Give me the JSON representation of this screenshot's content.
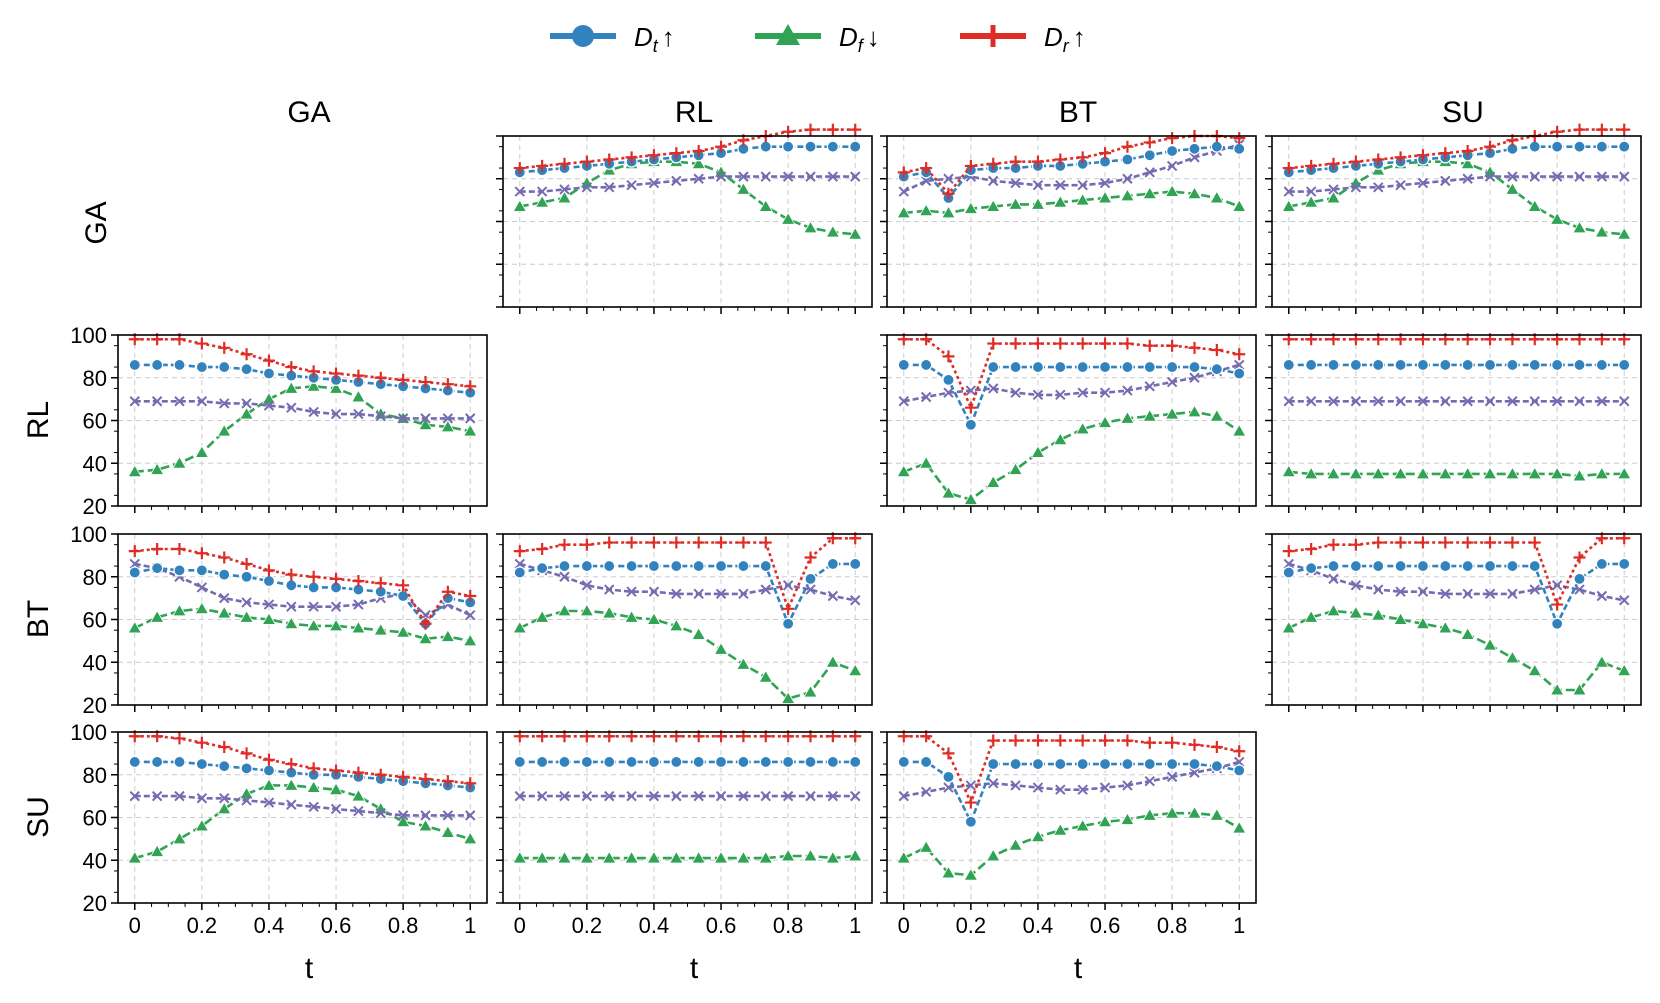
{
  "legend": {
    "items": [
      {
        "label": "D",
        "sub": "t",
        "arrow": "↑",
        "color": "#3182bd",
        "marker": "circle"
      },
      {
        "label": "D",
        "sub": "f",
        "arrow": "↓",
        "color": "#31a354",
        "marker": "triangle"
      },
      {
        "label": "D",
        "sub": "r",
        "arrow": "↑",
        "color": "#de2d26",
        "marker": "plus"
      }
    ]
  },
  "col_labels": [
    "GA",
    "RL",
    "BT",
    "SU"
  ],
  "row_labels": [
    "GA",
    "RL",
    "BT",
    "SU"
  ],
  "xlabel": "t",
  "chart_data": {
    "type": "line",
    "grid": true,
    "x": [
      0,
      0.0667,
      0.1333,
      0.2,
      0.2667,
      0.3333,
      0.4,
      0.4667,
      0.5333,
      0.6,
      0.6667,
      0.7333,
      0.8,
      0.8667,
      0.9333,
      1.0
    ],
    "xticks": [
      "0",
      "0.2",
      "0.4",
      "0.6",
      "0.8",
      "1"
    ],
    "yticks": [
      "20",
      "40",
      "60",
      "80",
      "100"
    ],
    "ylim": [
      20,
      100
    ],
    "xlim": [
      -0.05,
      1.05
    ],
    "series_styles": {
      "Dt": {
        "color": "#3182bd",
        "marker": "circle",
        "dash": "6,3"
      },
      "Df": {
        "color": "#31a354",
        "marker": "triangle",
        "dash": "9,4"
      },
      "Dr": {
        "color": "#de2d26",
        "marker": "plus",
        "dash": "3,3"
      },
      "X": {
        "color": "#756bb1",
        "marker": "x",
        "dash": "6,3"
      }
    },
    "panels": [
      {
        "row": 0,
        "col": 1,
        "series": {
          "Dt": [
            83,
            84,
            85,
            86,
            87,
            88,
            89,
            90,
            91,
            92,
            94,
            95,
            95,
            95,
            95,
            95
          ],
          "Df": [
            67,
            69,
            71,
            78,
            84,
            87,
            88,
            88,
            87,
            83,
            75,
            67,
            61,
            57,
            55,
            54
          ],
          "Dr": [
            85,
            86,
            87,
            88,
            89,
            90,
            91,
            92,
            93,
            95,
            98,
            100,
            102,
            103,
            103,
            103
          ],
          "X": [
            74,
            74,
            75,
            76,
            76,
            77,
            78,
            79,
            80,
            81,
            81,
            81,
            81,
            81,
            81,
            81
          ]
        }
      },
      {
        "row": 0,
        "col": 2,
        "series": {
          "Dt": [
            81,
            83,
            71,
            84,
            85,
            85,
            86,
            86,
            87,
            88,
            89,
            91,
            93,
            94,
            95,
            94
          ],
          "Df": [
            64,
            65,
            64,
            66,
            67,
            68,
            68,
            69,
            70,
            71,
            72,
            73,
            74,
            73,
            71,
            67
          ],
          "Dr": [
            83,
            85,
            73,
            86,
            87,
            88,
            88,
            89,
            90,
            92,
            95,
            97,
            99,
            100,
            100,
            99
          ],
          "X": [
            74,
            79,
            80,
            81,
            79,
            78,
            77,
            77,
            77,
            78,
            80,
            83,
            86,
            90,
            93,
            96
          ]
        }
      },
      {
        "row": 0,
        "col": 3,
        "series": {
          "Dt": [
            83,
            84,
            85,
            86,
            87,
            88,
            89,
            90,
            91,
            92,
            94,
            95,
            95,
            95,
            95,
            95
          ],
          "Df": [
            67,
            69,
            71,
            78,
            84,
            87,
            88,
            88,
            87,
            83,
            75,
            67,
            61,
            57,
            55,
            54
          ],
          "Dr": [
            85,
            86,
            87,
            88,
            89,
            90,
            91,
            92,
            93,
            95,
            98,
            100,
            102,
            103,
            103,
            103
          ],
          "X": [
            74,
            74,
            75,
            76,
            76,
            77,
            78,
            79,
            80,
            81,
            81,
            81,
            81,
            81,
            81,
            81
          ]
        }
      },
      {
        "row": 1,
        "col": 0,
        "series": {
          "Dt": [
            86,
            86,
            86,
            85,
            85,
            84,
            82,
            81,
            80,
            79,
            78,
            77,
            76,
            75,
            74,
            73
          ],
          "Df": [
            36,
            37,
            40,
            45,
            55,
            63,
            70,
            75,
            76,
            75,
            71,
            63,
            61,
            58,
            57,
            55
          ],
          "Dr": [
            98,
            98,
            98,
            96,
            94,
            91,
            88,
            85,
            83,
            82,
            81,
            80,
            79,
            78,
            77,
            76
          ],
          "X": [
            69,
            69,
            69,
            69,
            68,
            68,
            67,
            66,
            64,
            63,
            63,
            62,
            61,
            61,
            61,
            61
          ]
        }
      },
      {
        "row": 1,
        "col": 2,
        "series": {
          "Dt": [
            86,
            86,
            79,
            58,
            85,
            85,
            85,
            85,
            85,
            85,
            85,
            85,
            85,
            85,
            84,
            82
          ],
          "Df": [
            36,
            40,
            26,
            23,
            31,
            37,
            45,
            51,
            56,
            59,
            61,
            62,
            63,
            64,
            62,
            55
          ],
          "Dr": [
            98,
            98,
            90,
            66,
            96,
            96,
            96,
            96,
            96,
            96,
            96,
            95,
            95,
            94,
            93,
            91
          ],
          "X": [
            69,
            71,
            73,
            74,
            75,
            73,
            72,
            72,
            73,
            73,
            74,
            76,
            78,
            80,
            83,
            86
          ]
        }
      },
      {
        "row": 1,
        "col": 3,
        "series": {
          "Dt": [
            86,
            86,
            86,
            86,
            86,
            86,
            86,
            86,
            86,
            86,
            86,
            86,
            86,
            86,
            86,
            86
          ],
          "Df": [
            36,
            35,
            35,
            35,
            35,
            35,
            35,
            35,
            35,
            35,
            35,
            35,
            35,
            34,
            35,
            35
          ],
          "Dr": [
            98,
            98,
            98,
            98,
            98,
            98,
            98,
            98,
            98,
            98,
            98,
            98,
            98,
            98,
            98,
            98
          ],
          "X": [
            69,
            69,
            69,
            69,
            69,
            69,
            69,
            69,
            69,
            69,
            69,
            69,
            69,
            69,
            69,
            69
          ]
        }
      },
      {
        "row": 2,
        "col": 0,
        "series": {
          "Dt": [
            82,
            84,
            83,
            83,
            81,
            80,
            78,
            76,
            75,
            75,
            74,
            73,
            71,
            58,
            70,
            68
          ],
          "Df": [
            56,
            61,
            64,
            65,
            63,
            61,
            60,
            58,
            57,
            57,
            56,
            55,
            54,
            51,
            52,
            50
          ],
          "Dr": [
            92,
            93,
            93,
            91,
            89,
            86,
            83,
            81,
            80,
            79,
            78,
            77,
            76,
            58,
            73,
            71
          ],
          "X": [
            86,
            84,
            80,
            75,
            70,
            68,
            67,
            66,
            66,
            66,
            67,
            70,
            72,
            62,
            67,
            62
          ]
        }
      },
      {
        "row": 2,
        "col": 1,
        "series": {
          "Dt": [
            82,
            84,
            85,
            85,
            85,
            85,
            85,
            85,
            85,
            85,
            85,
            85,
            58,
            79,
            86,
            86
          ],
          "Df": [
            56,
            61,
            64,
            64,
            63,
            61,
            60,
            57,
            53,
            46,
            39,
            33,
            23,
            26,
            40,
            36
          ],
          "Dr": [
            92,
            93,
            95,
            95,
            96,
            96,
            96,
            96,
            96,
            96,
            96,
            96,
            65,
            89,
            98,
            98
          ],
          "X": [
            86,
            83,
            80,
            76,
            74,
            73,
            73,
            72,
            72,
            72,
            72,
            74,
            76,
            74,
            71,
            69
          ]
        }
      },
      {
        "row": 2,
        "col": 3,
        "series": {
          "Dt": [
            82,
            84,
            85,
            85,
            85,
            85,
            85,
            85,
            85,
            85,
            85,
            85,
            58,
            79,
            86,
            86
          ],
          "Df": [
            56,
            61,
            64,
            63,
            62,
            60,
            58,
            56,
            53,
            48,
            42,
            36,
            27,
            27,
            40,
            36
          ],
          "Dr": [
            92,
            93,
            95,
            95,
            96,
            96,
            96,
            96,
            96,
            96,
            96,
            96,
            67,
            89,
            98,
            98
          ],
          "X": [
            86,
            83,
            79,
            76,
            74,
            73,
            73,
            72,
            72,
            72,
            72,
            74,
            76,
            74,
            71,
            69
          ]
        }
      },
      {
        "row": 3,
        "col": 0,
        "series": {
          "Dt": [
            86,
            86,
            86,
            85,
            84,
            83,
            82,
            81,
            80,
            80,
            79,
            78,
            77,
            76,
            75,
            74
          ],
          "Df": [
            41,
            44,
            50,
            56,
            64,
            71,
            75,
            75,
            74,
            73,
            70,
            64,
            58,
            56,
            53,
            50
          ],
          "Dr": [
            98,
            98,
            97,
            95,
            93,
            90,
            87,
            85,
            83,
            82,
            81,
            80,
            79,
            78,
            77,
            76
          ],
          "X": [
            70,
            70,
            70,
            69,
            69,
            68,
            67,
            66,
            65,
            64,
            63,
            62,
            61,
            61,
            61,
            61
          ]
        }
      },
      {
        "row": 3,
        "col": 1,
        "series": {
          "Dt": [
            86,
            86,
            86,
            86,
            86,
            86,
            86,
            86,
            86,
            86,
            86,
            86,
            86,
            86,
            86,
            86
          ],
          "Df": [
            41,
            41,
            41,
            41,
            41,
            41,
            41,
            41,
            41,
            41,
            41,
            41,
            42,
            42,
            41,
            42
          ],
          "Dr": [
            98,
            98,
            98,
            98,
            98,
            98,
            98,
            98,
            98,
            98,
            98,
            98,
            98,
            98,
            98,
            98
          ],
          "X": [
            70,
            70,
            70,
            70,
            70,
            70,
            70,
            70,
            70,
            70,
            70,
            70,
            70,
            70,
            70,
            70
          ]
        }
      },
      {
        "row": 3,
        "col": 2,
        "series": {
          "Dt": [
            86,
            86,
            79,
            58,
            85,
            85,
            85,
            85,
            85,
            85,
            85,
            85,
            85,
            85,
            84,
            82
          ],
          "Df": [
            41,
            46,
            34,
            33,
            42,
            47,
            51,
            54,
            56,
            58,
            59,
            61,
            62,
            62,
            61,
            55
          ],
          "Dr": [
            98,
            98,
            90,
            67,
            96,
            96,
            96,
            96,
            96,
            96,
            96,
            95,
            95,
            94,
            93,
            91
          ],
          "X": [
            70,
            72,
            74,
            75,
            76,
            75,
            74,
            73,
            73,
            74,
            75,
            77,
            79,
            81,
            83,
            86
          ]
        }
      }
    ]
  }
}
